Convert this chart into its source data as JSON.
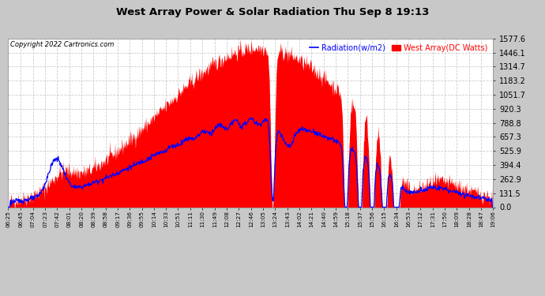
{
  "title": "West Array Power & Solar Radiation Thu Sep 8 19:13",
  "copyright": "Copyright 2022 Cartronics.com",
  "legend_radiation": "Radiation(w/m2)",
  "legend_west": "West Array(DC Watts)",
  "ylabel_right": [
    "1577.6",
    "1446.1",
    "1314.7",
    "1183.2",
    "1051.7",
    "920.3",
    "788.8",
    "657.3",
    "525.9",
    "394.4",
    "262.9",
    "131.5",
    "0.0"
  ],
  "ymax": 1577.6,
  "ymin": 0.0,
  "bg_color": "#c8c8c8",
  "plot_bg_color": "#ffffff",
  "grid_color": "#cccccc",
  "fill_color": "#ff0000",
  "line_color": "#0000ff",
  "title_color": "black",
  "copyright_color": "black",
  "x_tick_labels": [
    "06:25",
    "06:45",
    "07:04",
    "07:23",
    "07:42",
    "08:01",
    "08:20",
    "08:39",
    "08:58",
    "09:17",
    "09:36",
    "09:55",
    "10:14",
    "10:33",
    "10:51",
    "11:11",
    "11:30",
    "11:49",
    "12:08",
    "12:27",
    "12:46",
    "13:05",
    "13:24",
    "13:43",
    "14:02",
    "14:21",
    "14:40",
    "14:59",
    "15:18",
    "15:37",
    "15:56",
    "16:15",
    "16:34",
    "16:53",
    "17:12",
    "17:31",
    "17:50",
    "18:09",
    "18:28",
    "18:47",
    "19:06"
  ]
}
